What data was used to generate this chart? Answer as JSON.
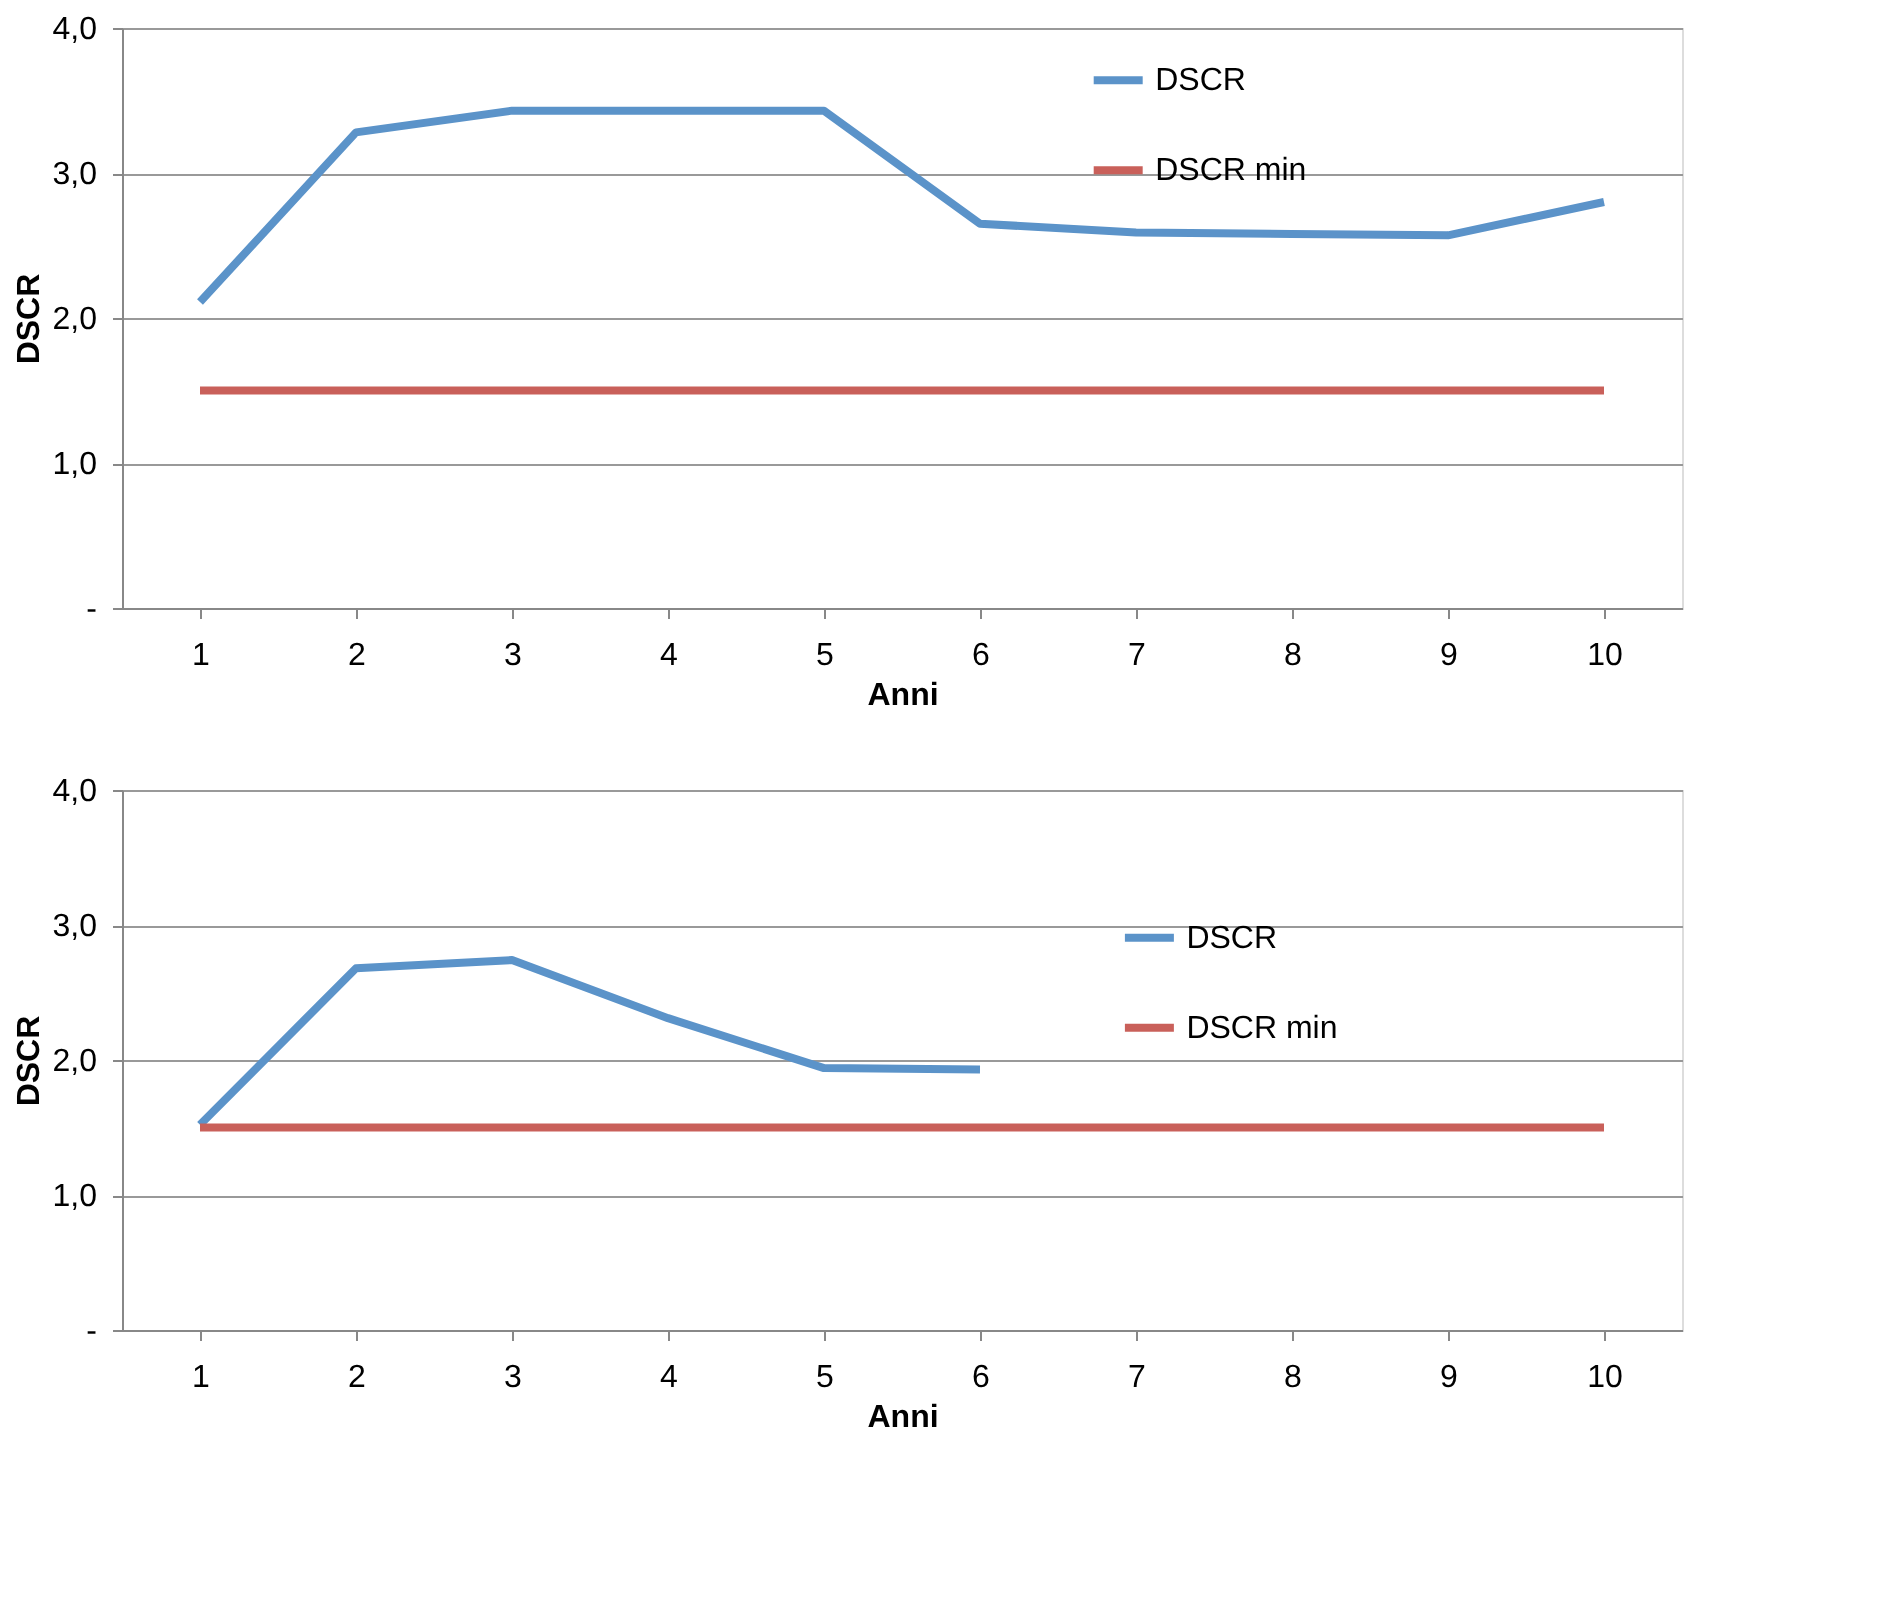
{
  "chart_data": [
    {
      "type": "line",
      "xlabel": "Anni",
      "ylabel": "DSCR",
      "categories": [
        "1",
        "2",
        "3",
        "4",
        "5",
        "6",
        "7",
        "8",
        "9",
        "10"
      ],
      "series": [
        {
          "name": "DSCR",
          "color": "#5b93c9",
          "values": [
            2.11,
            3.28,
            3.43,
            3.43,
            3.43,
            2.65,
            2.59,
            2.58,
            2.57,
            2.8
          ]
        },
        {
          "name": "DSCR min",
          "color": "#c9605a",
          "values": [
            1.5,
            1.5,
            1.5,
            1.5,
            1.5,
            1.5,
            1.5,
            1.5,
            1.5,
            1.5
          ]
        }
      ],
      "ylim": [
        0,
        4
      ],
      "yticks": [
        {
          "value": 0,
          "label": "-"
        },
        {
          "value": 1,
          "label": "1,0"
        },
        {
          "value": 2,
          "label": "2,0"
        },
        {
          "value": 3,
          "label": "3,0"
        },
        {
          "value": 4,
          "label": "4,0"
        }
      ],
      "grid": "y",
      "legend": "top right",
      "marker": "none",
      "line_style": "solid"
    },
    {
      "type": "line",
      "xlabel": "Anni",
      "ylabel": "DSCR",
      "categories": [
        "1",
        "2",
        "3",
        "4",
        "5",
        "6",
        "7",
        "8",
        "9",
        "10"
      ],
      "series": [
        {
          "name": "DSCR",
          "color": "#5b93c9",
          "values": [
            1.52,
            2.68,
            2.74,
            2.31,
            1.94,
            1.93,
            null,
            null,
            null,
            null
          ]
        },
        {
          "name": "DSCR min",
          "color": "#c9605a",
          "values": [
            1.5,
            1.5,
            1.5,
            1.5,
            1.5,
            1.5,
            1.5,
            1.5,
            1.5,
            1.5
          ]
        }
      ],
      "ylim": [
        0,
        4
      ],
      "yticks": [
        {
          "value": 0,
          "label": "-"
        },
        {
          "value": 1,
          "label": "1,0"
        },
        {
          "value": 2,
          "label": "2,0"
        },
        {
          "value": 3,
          "label": "3,0"
        },
        {
          "value": 4,
          "label": "4,0"
        }
      ],
      "grid": "y",
      "legend": "right",
      "marker": "none",
      "line_style": "solid"
    }
  ]
}
